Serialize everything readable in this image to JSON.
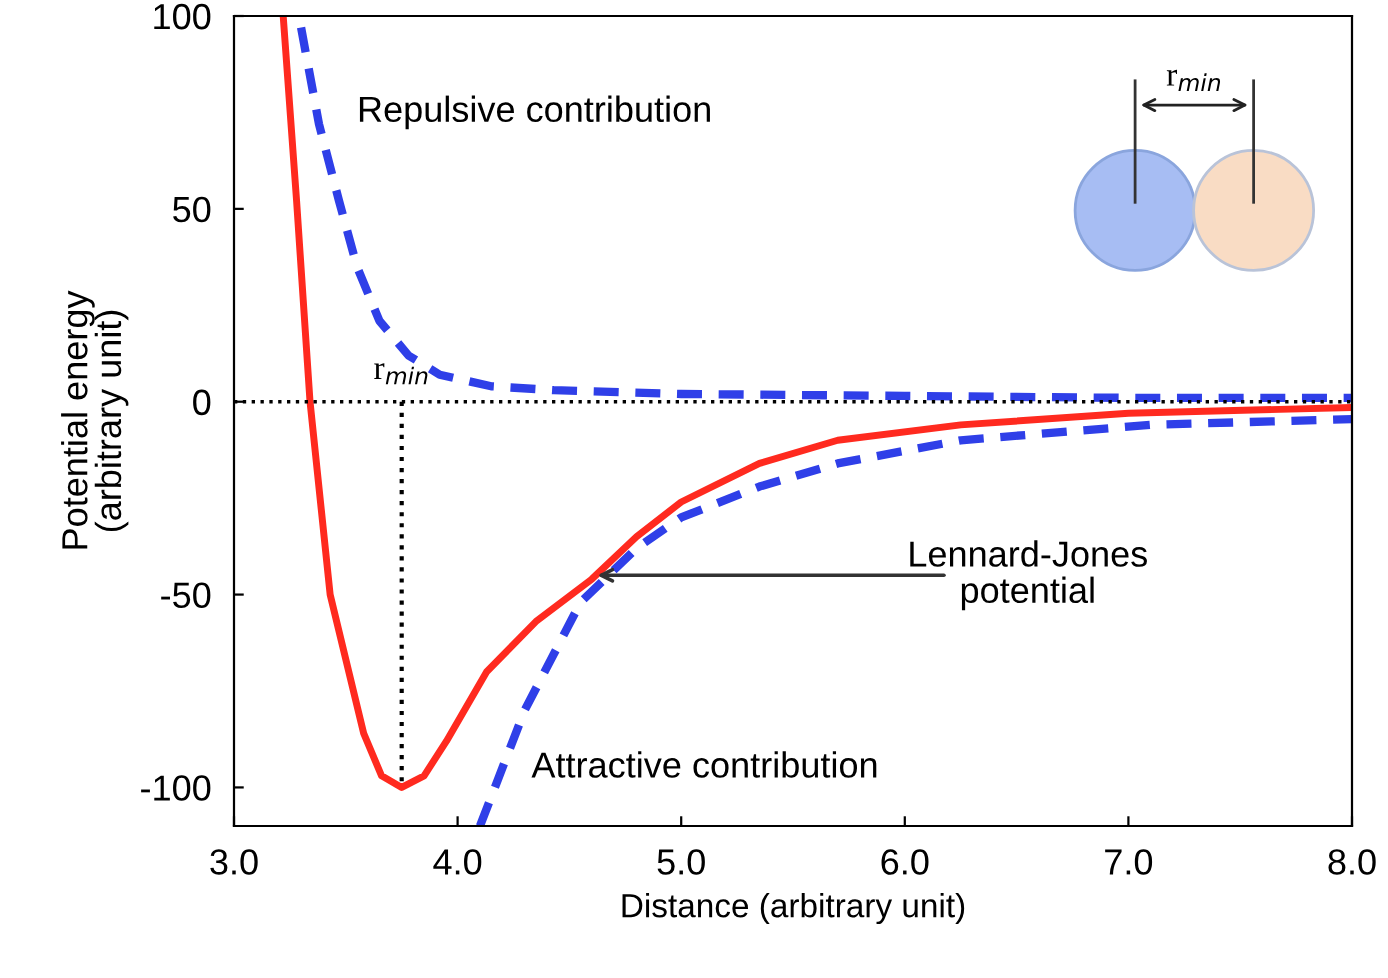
{
  "chart_data": {
    "type": "line",
    "xlabel": "Distance (arbitrary unit)",
    "ylabel": "Potential energy\n(arbitrary unit)",
    "xlim": [
      3.0,
      8.0
    ],
    "ylim": [
      -110,
      100
    ],
    "xticks": [
      {
        "value": 3,
        "label": "3.0"
      },
      {
        "value": 4,
        "label": "4.0"
      },
      {
        "value": 5,
        "label": "5.0"
      },
      {
        "value": 6,
        "label": "6.0"
      },
      {
        "value": 7,
        "label": "7.0"
      },
      {
        "value": 8,
        "label": "8.0"
      }
    ],
    "yticks": [
      -100,
      -50,
      0,
      50,
      100
    ],
    "grid": false,
    "legend": false,
    "marker": "none",
    "series": [
      {
        "color": "#ff2a1f",
        "line_style": "solid",
        "x": [
          3.22,
          3.28,
          3.34,
          3.43,
          3.58,
          3.66,
          3.75,
          3.85,
          3.95,
          4.13,
          4.35,
          4.6,
          4.8,
          5.0,
          5.35,
          5.7,
          6.25,
          7.0,
          8.0
        ],
        "values": [
          100,
          52,
          0,
          -50,
          -86,
          -97,
          -100,
          -97,
          -88,
          -70,
          -57,
          -46,
          -35,
          -26,
          -16,
          -10,
          -6,
          -3,
          -1.5
        ]
      },
      {
        "color": "#2f3fe8",
        "line_style": "dashed",
        "x": [
          3.3,
          3.38,
          3.47,
          3.55,
          3.65,
          3.78,
          3.92,
          4.15,
          4.43,
          5.0,
          6.0,
          7.0,
          8.0
        ],
        "values": [
          97,
          72,
          52,
          35,
          21,
          12,
          7,
          4,
          3,
          2,
          1.5,
          1,
          1
        ]
      },
      {
        "color": "#2f3fe8",
        "line_style": "dashed",
        "x": [
          4.1,
          4.3,
          4.55,
          4.8,
          5.0,
          5.35,
          5.7,
          6.25,
          7.1,
          8.0
        ],
        "values": [
          -110,
          -80,
          -52,
          -38,
          -30,
          -22,
          -16,
          -10,
          -6,
          -4.5
        ]
      }
    ],
    "ref_lines": [
      {
        "axis": "y",
        "value": 0,
        "label": "r$_{min}$",
        "color": "#000000",
        "line_style": "dotted"
      },
      {
        "axis": "x",
        "value": 3.75,
        "color": "#000000",
        "line_style": "dotted"
      }
    ],
    "annotations": [
      "Repulsive contribution",
      "Attractive contribution",
      {
        "text": "Lennard-Jones\npotential",
        "x": 4.6,
        "y": -45
      },
      "r$_{min}$"
    ]
  }
}
